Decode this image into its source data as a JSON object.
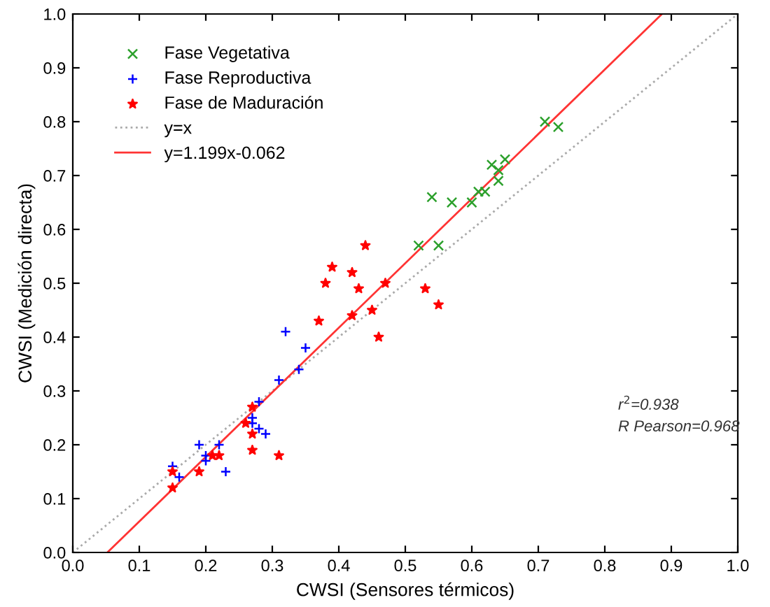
{
  "chart_data": {
    "type": "scatter",
    "xlabel": "CWSI (Sensores térmicos)",
    "ylabel": "CWSI (Medición directa)",
    "xlim": [
      0,
      1
    ],
    "ylim": [
      0,
      1
    ],
    "xticks": [
      {
        "value": 0,
        "label": "0.0"
      },
      0.1,
      0.2,
      0.3,
      0.4,
      0.5,
      0.6,
      0.7,
      0.8,
      0.9,
      {
        "value": 1,
        "label": "1.0"
      }
    ],
    "yticks": [
      {
        "value": 0,
        "label": "0.0"
      },
      0.1,
      0.2,
      0.3,
      0.4,
      0.5,
      0.6,
      0.7,
      0.8,
      0.9,
      {
        "value": 1,
        "label": "1.0"
      }
    ],
    "grid": false,
    "legend": "top left",
    "series": [
      {
        "name": "Fase Vegetativa",
        "color": "#2ca02c",
        "marker": "cross",
        "x": [
          0.52,
          0.54,
          0.55,
          0.57,
          0.6,
          0.61,
          0.62,
          0.63,
          0.64,
          0.64,
          0.65,
          0.71,
          0.73
        ],
        "values": [
          0.57,
          0.66,
          0.57,
          0.65,
          0.65,
          0.67,
          0.67,
          0.72,
          0.71,
          0.69,
          0.73,
          0.8,
          0.79
        ]
      },
      {
        "name": "Fase Reproductiva",
        "color": "#0000ff",
        "marker": "plus",
        "x": [
          0.15,
          0.16,
          0.19,
          0.2,
          0.2,
          0.22,
          0.23,
          0.27,
          0.27,
          0.28,
          0.28,
          0.29,
          0.31,
          0.32,
          0.34,
          0.35
        ],
        "values": [
          0.16,
          0.14,
          0.2,
          0.18,
          0.17,
          0.2,
          0.15,
          0.24,
          0.25,
          0.23,
          0.28,
          0.22,
          0.32,
          0.41,
          0.34,
          0.38
        ]
      },
      {
        "name": "Fase de Maduración",
        "color": "#ff0000",
        "marker": "star",
        "x": [
          0.15,
          0.15,
          0.19,
          0.21,
          0.22,
          0.26,
          0.27,
          0.27,
          0.27,
          0.31,
          0.37,
          0.38,
          0.39,
          0.42,
          0.43,
          0.44,
          0.42,
          0.45,
          0.46,
          0.47,
          0.53,
          0.55
        ],
        "values": [
          0.15,
          0.12,
          0.15,
          0.18,
          0.18,
          0.24,
          0.27,
          0.19,
          0.22,
          0.18,
          0.43,
          0.5,
          0.53,
          0.52,
          0.49,
          0.57,
          0.44,
          0.45,
          0.4,
          0.5,
          0.49,
          0.46
        ]
      },
      {
        "name": "y=x",
        "type": "line",
        "color": "#aaaaaa",
        "line_style": "dotted",
        "x": [
          0,
          1
        ],
        "values": [
          0,
          1
        ]
      },
      {
        "name": "y=1.199x-0.062",
        "type": "line",
        "color": "#ff3333",
        "line_style": "solid",
        "x": [
          0.052,
          0.886
        ],
        "values": [
          0.0,
          1.0
        ]
      }
    ],
    "annotations": [
      "r$^{2}$=0.938",
      "R Pearson=0.968"
    ]
  }
}
